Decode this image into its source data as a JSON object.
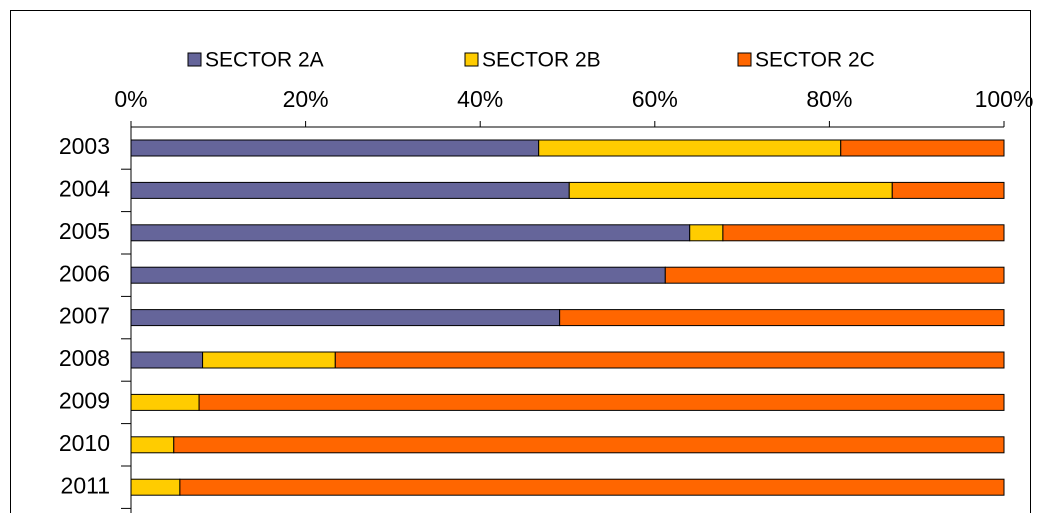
{
  "chart_data": {
    "type": "stacked_barh",
    "categories": [
      "2003",
      "2004",
      "2005",
      "2006",
      "2007",
      "2008",
      "2009",
      "2010",
      "2011"
    ],
    "series": [
      {
        "name": "SECTOR 2A",
        "color": "#65659a",
        "values": [
          46.7,
          50.2,
          64.0,
          61.2,
          49.1,
          8.2,
          0,
          0,
          0
        ]
      },
      {
        "name": "SECTOR 2B",
        "color": "#ffcc00",
        "values": [
          34.6,
          37.0,
          3.8,
          0,
          0,
          15.2,
          7.8,
          4.9,
          5.6
        ]
      },
      {
        "name": "SECTOR 2C",
        "color": "#ff6600",
        "values": [
          18.7,
          12.8,
          32.2,
          38.8,
          50.9,
          76.6,
          92.2,
          95.1,
          94.4
        ]
      }
    ],
    "xlim": [
      0,
      100
    ],
    "xticks": [
      {
        "value": 0,
        "label": "0%"
      },
      {
        "value": 20,
        "label": "20%"
      },
      {
        "value": 40,
        "label": "40%"
      },
      {
        "value": 60,
        "label": "60%"
      },
      {
        "value": 80,
        "label": "80%"
      },
      {
        "value": 100,
        "label": "100%"
      }
    ],
    "legend": "top"
  }
}
